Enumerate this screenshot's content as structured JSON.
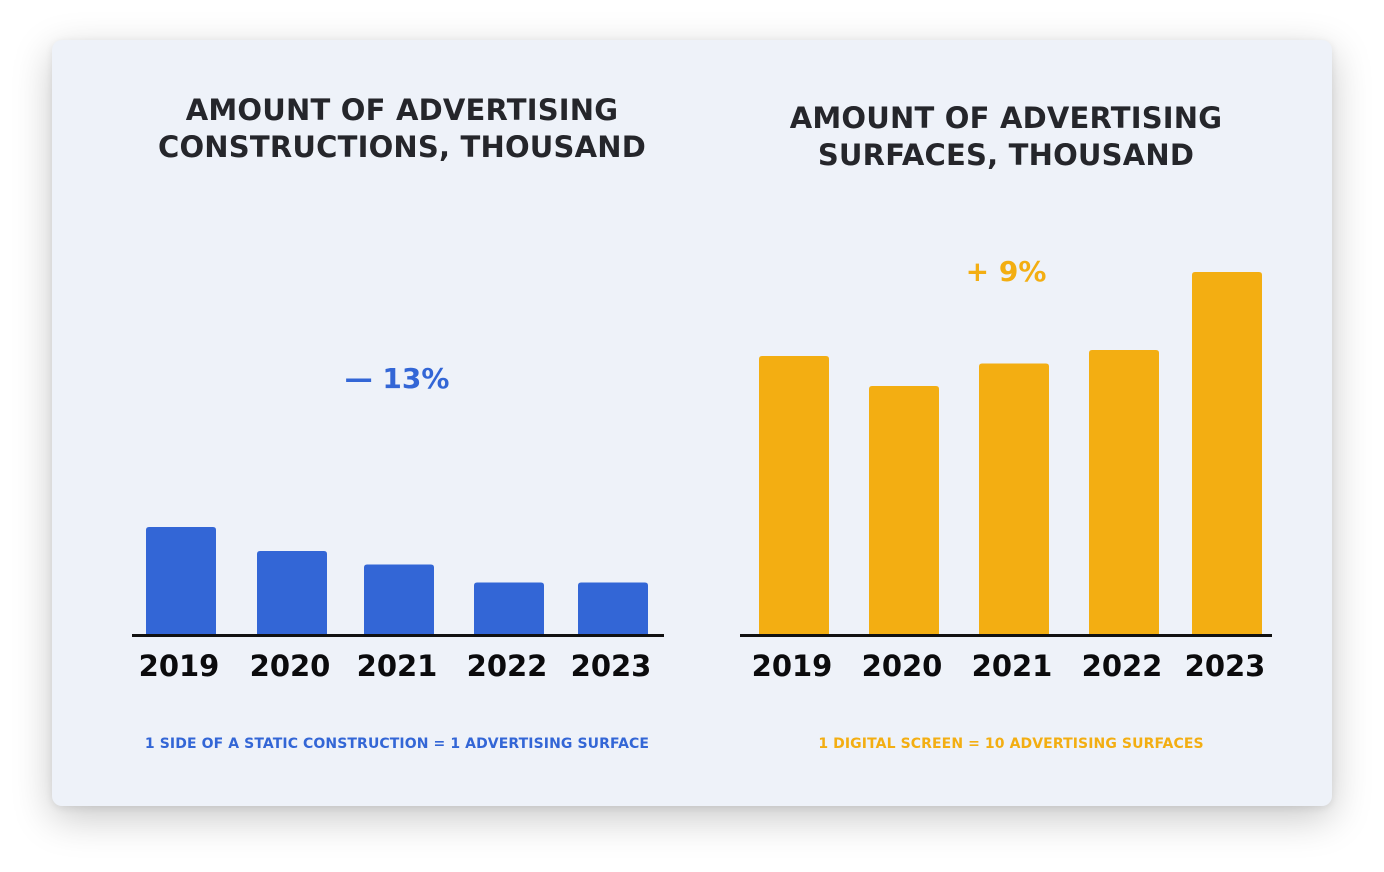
{
  "colors": {
    "blue": "#3366d6",
    "yellow": "#f3ae12",
    "axis": "#111111"
  },
  "chart_data": [
    {
      "type": "bar",
      "title_lines": [
        "AMOUNT OF ADVERTISING",
        "CONSTRUCTIONS, THOUSAND"
      ],
      "categories": [
        "2019",
        "2020",
        "2021",
        "2022",
        "2023"
      ],
      "values": [
        36,
        28,
        23.5,
        17.5,
        17.5
      ],
      "ylim": [
        0,
        130
      ],
      "change_label": "— 13%",
      "footnote": "1 SIDE OF A STATIC CONSTRUCTION = 1 ADVERTISING SURFACE",
      "color": "#3366d6"
    },
    {
      "type": "bar",
      "title_lines": [
        "AMOUNT OF ADVERTISING",
        "SURFACES, THOUSAND"
      ],
      "categories": [
        "2019",
        "2020",
        "2021",
        "2022",
        "2023"
      ],
      "values": [
        93,
        83,
        90.5,
        95,
        121
      ],
      "ylim": [
        0,
        130
      ],
      "change_label": "+ 9%",
      "footnote": "1 DIGITAL SCREEN = 10 ADVERTISING SURFACES",
      "color": "#f3ae12"
    }
  ]
}
